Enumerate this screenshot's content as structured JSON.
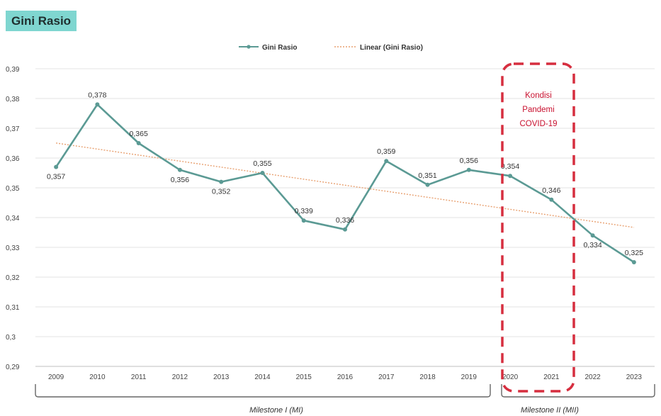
{
  "title": "Gini Rasio",
  "legend": {
    "series": "Gini Rasio",
    "trend": "Linear (Gini Rasio)"
  },
  "annotation": {
    "lines": [
      "Kondisi",
      "Pandemi",
      "COVID-19"
    ]
  },
  "milestones": [
    "Milestone I (MI)",
    "Milestone II (MII)"
  ],
  "colors": {
    "line": "#5b9a94",
    "trend": "#e8a070",
    "highlight": "#d62e3f",
    "badge": "#7fd6d0"
  },
  "chart_data": {
    "type": "line",
    "categories": [
      "2009",
      "2010",
      "2011",
      "2012",
      "2013",
      "2014",
      "2015",
      "2016",
      "2017",
      "2018",
      "2019",
      "2020",
      "2021",
      "2022",
      "2023"
    ],
    "series": [
      {
        "name": "Gini Rasio",
        "values": [
          0.357,
          0.378,
          0.365,
          0.356,
          0.352,
          0.355,
          0.339,
          0.336,
          0.359,
          0.351,
          0.356,
          0.354,
          0.346,
          0.334,
          0.325
        ],
        "labels": [
          "0,357",
          "0,378",
          "0,365",
          "0,356",
          "0,352",
          "0,355",
          "0,339",
          "0,336",
          "0,359",
          "0,351",
          "0,356",
          "0,354",
          "0,346",
          "0,334",
          "0,325"
        ]
      }
    ],
    "trendline": {
      "name": "Linear (Gini Rasio)",
      "type": "linear"
    },
    "ylim": [
      0.29,
      0.39
    ],
    "yticks": [
      "0,29",
      "0,3",
      "0,31",
      "0,32",
      "0,33",
      "0,34",
      "0,35",
      "0,36",
      "0,37",
      "0,38",
      "0,39"
    ],
    "grid": true,
    "legend_position": "top-center",
    "highlight_range": [
      "2020",
      "2021"
    ]
  }
}
